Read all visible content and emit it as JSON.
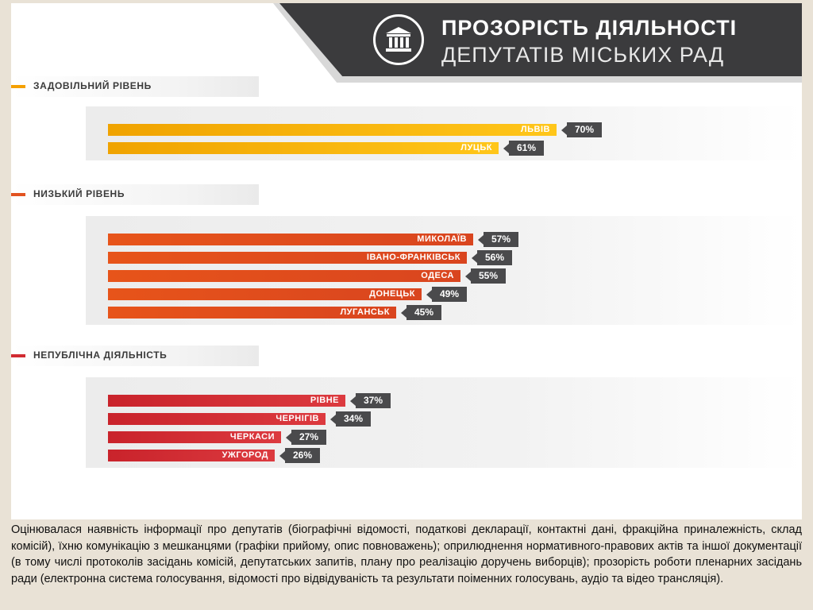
{
  "header": {
    "title_line1": "ПРОЗОРІСТЬ ДІЯЛЬНОСТІ",
    "title_line2": "ДЕПУТАТІВ МІСЬКИХ РАД",
    "logo_icon": "building-columns-icon"
  },
  "chart_data": {
    "type": "bar",
    "orientation": "horizontal",
    "value_unit": "%",
    "groups": [
      {
        "name": "ЗАДОВІЛЬНИЙ РІВЕНЬ",
        "color": "#f5a000",
        "gradient": [
          "#f0a300",
          "#ffc61a"
        ],
        "items": [
          {
            "city": "ЛЬВІВ",
            "value": 70,
            "label": "70%"
          },
          {
            "city": "ЛУЦЬК",
            "value": 61,
            "label": "61%"
          }
        ]
      },
      {
        "name": "НИЗЬКИЙ РІВЕНЬ",
        "color": "#e25320",
        "gradient": [
          "#e7541a",
          "#d9451f"
        ],
        "items": [
          {
            "city": "МИКОЛАЇВ",
            "value": 57,
            "label": "57%"
          },
          {
            "city": "ІВАНО-ФРАНКІВСЬК",
            "value": 56,
            "label": "56%"
          },
          {
            "city": "ОДЕСА",
            "value": 55,
            "label": "55%"
          },
          {
            "city": "ДОНЕЦЬК",
            "value": 49,
            "label": "49%"
          },
          {
            "city": "ЛУГАНСЬК",
            "value": 45,
            "label": "45%"
          }
        ]
      },
      {
        "name": "НЕПУБЛІЧНА ДІЯЛЬНІСТЬ",
        "color": "#d12b31",
        "gradient": [
          "#c9232b",
          "#dc3a3f"
        ],
        "items": [
          {
            "city": "РІВНЕ",
            "value": 37,
            "label": "37%"
          },
          {
            "city": "ЧЕРНІГІВ",
            "value": 34,
            "label": "34%"
          },
          {
            "city": "ЧЕРКАСИ",
            "value": 27,
            "label": "27%"
          },
          {
            "city": "УЖГОРОД",
            "value": 26,
            "label": "26%"
          }
        ]
      }
    ]
  },
  "caption": "Оцінювалася наявність інформації про депутатів (біографічні відомості, податкові декларації, контактні дані, фракційна приналежність, склад комісій), їхню комунікацію з мешканцями (графіки прийому, опис повноважень); оприлюднення нормативного-правових актів та іншої документації (в тому числі протоколів засідань комісій, депутатських запитів, плану про реалізацію доручень виборців); прозорість роботи пленарних засідань ради (електронна система голосування, відомості про відвідуваність та результати поіменних голосувань, аудіо та відео трансляція)."
}
